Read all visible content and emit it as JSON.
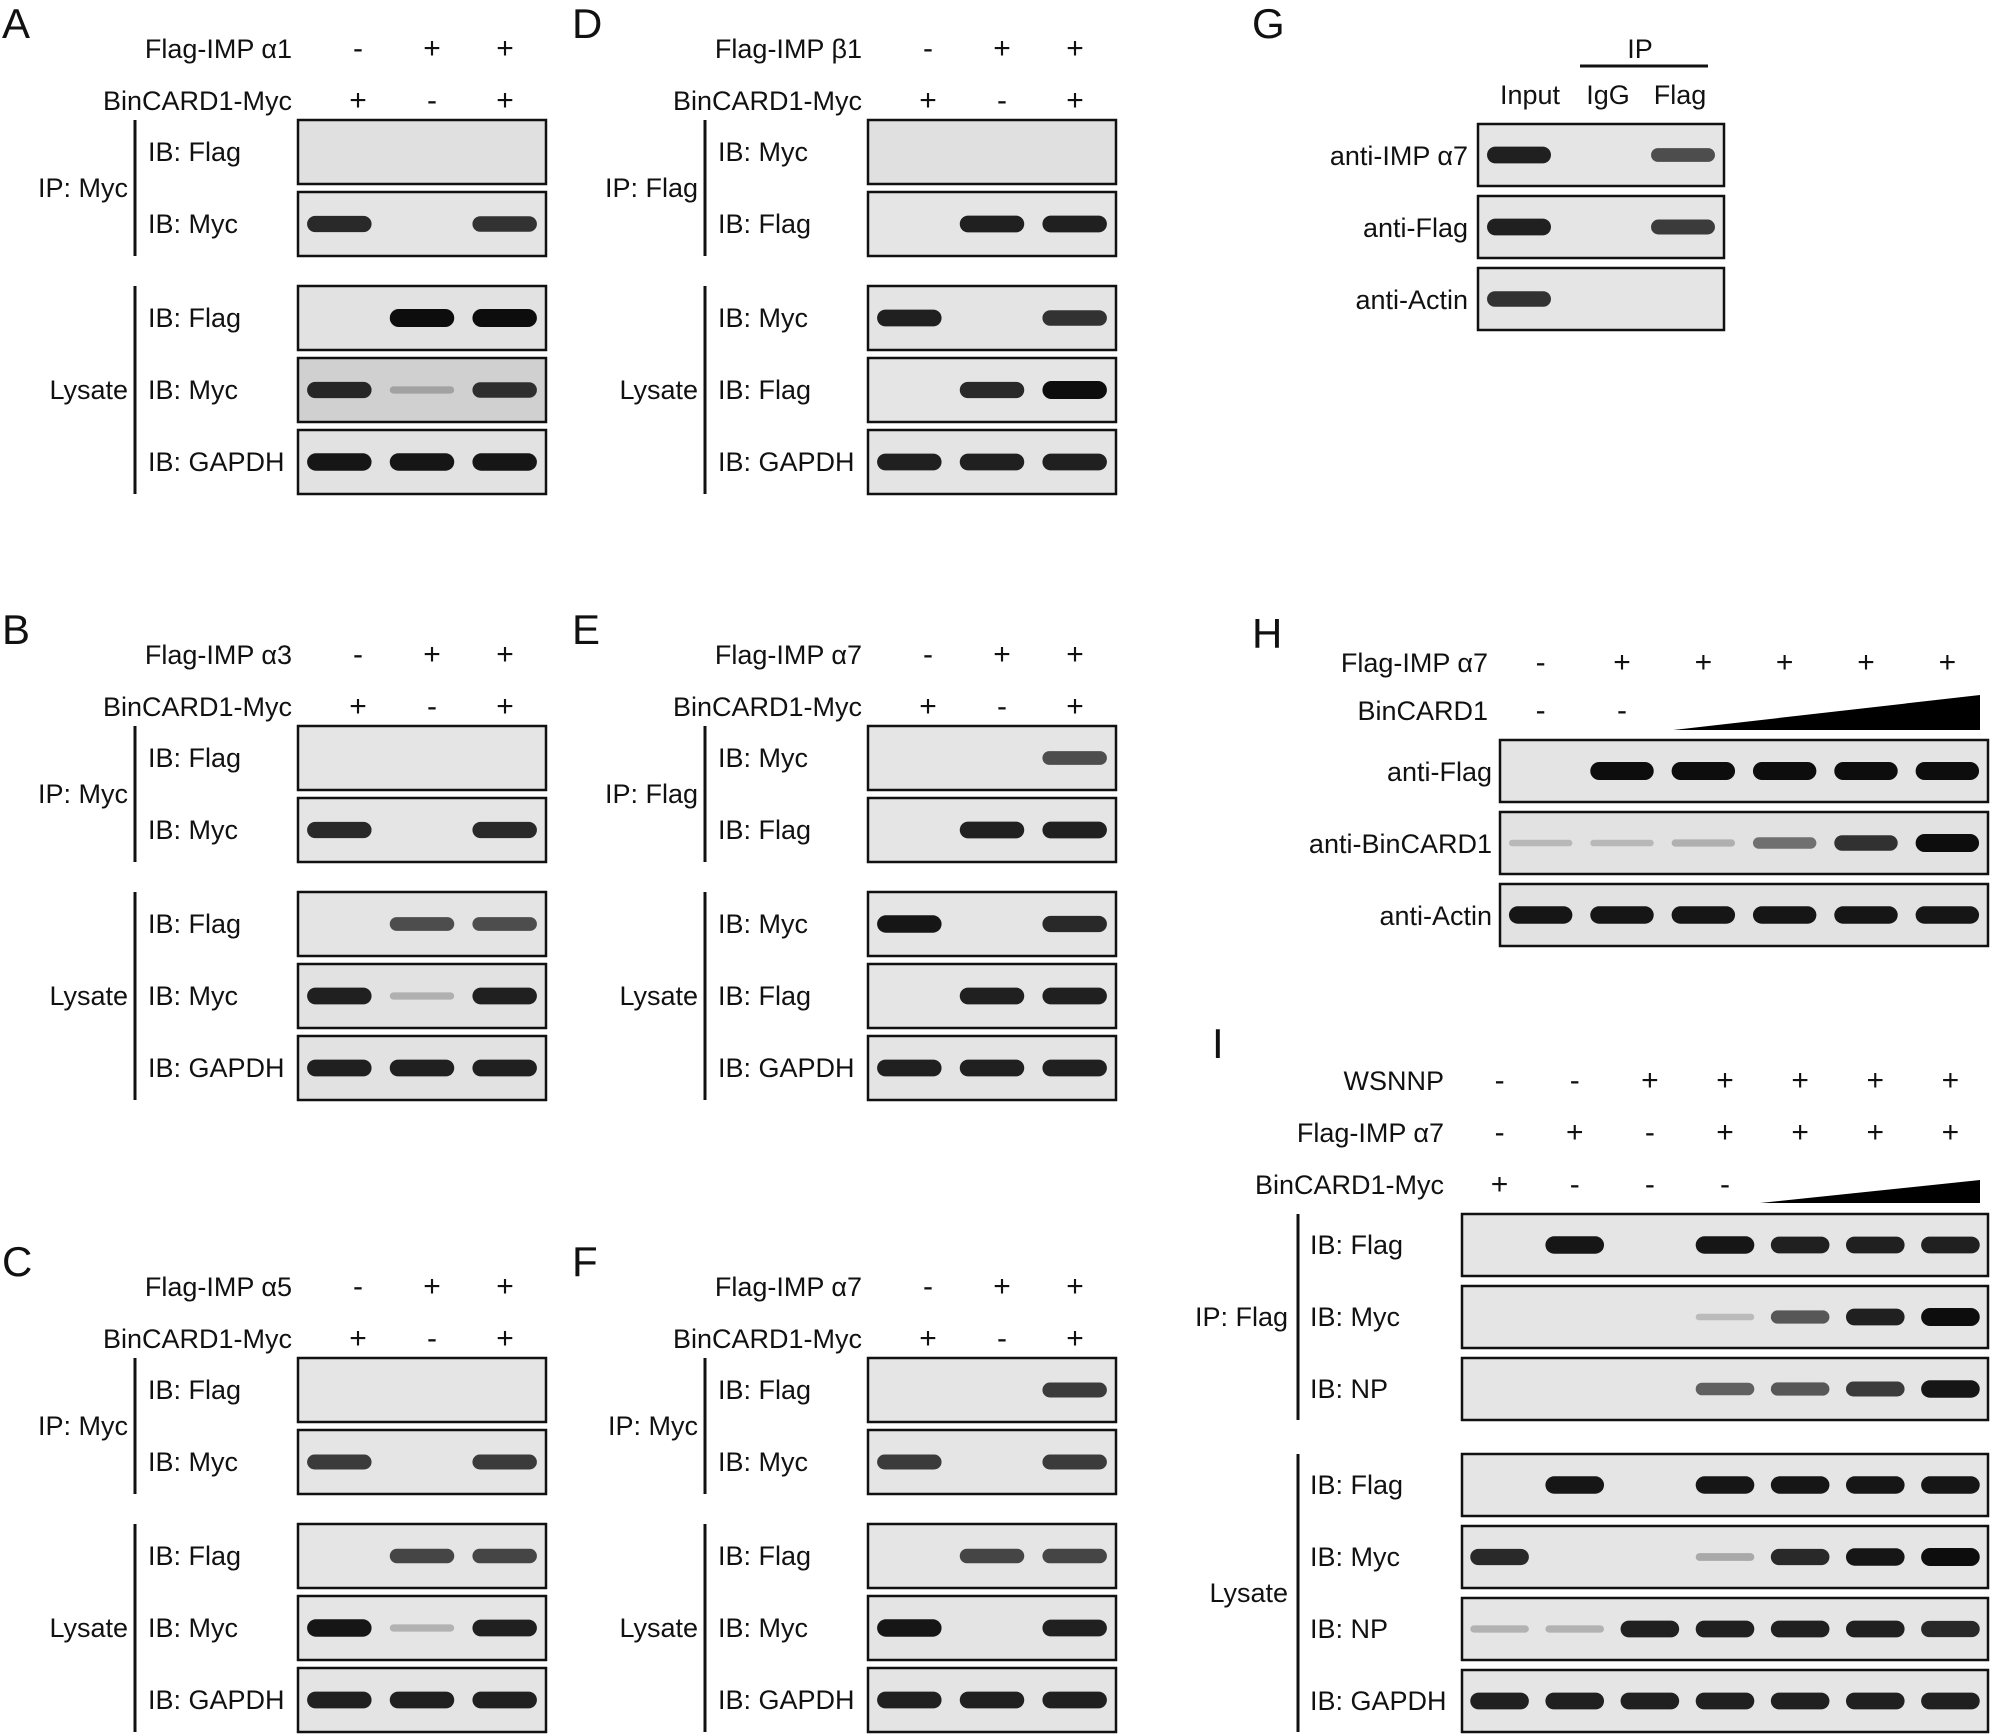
{
  "panels": [
    {
      "letter": "A",
      "conditions": [
        {
          "label": "Flag-IMP α1",
          "signs": [
            "-",
            "+",
            "+"
          ]
        },
        {
          "label": "BinCARD1-Myc",
          "signs": [
            "+",
            "-",
            "+"
          ]
        }
      ],
      "groups": [
        {
          "label": "IP: Myc",
          "blots": [
            {
              "label": "IB: Flag",
              "bands": [
                0,
                0,
                0
              ],
              "bg": 0.18
            },
            {
              "label": "IB: Myc",
              "bands": [
                0.85,
                0,
                0.8
              ],
              "bg": 0.12
            }
          ]
        },
        {
          "label": "Lysate",
          "blots": [
            {
              "label": "IB: Flag",
              "bands": [
                0,
                1,
                1
              ],
              "bg": 0.15
            },
            {
              "label": "IB: Myc",
              "bands": [
                0.85,
                0.1,
                0.8
              ],
              "bg": 0.45
            },
            {
              "label": "IB: GAPDH",
              "bands": [
                0.95,
                0.95,
                0.95
              ],
              "bg": 0.15
            }
          ]
        }
      ]
    },
    {
      "letter": "B",
      "conditions": [
        {
          "label": "Flag-IMP α3",
          "signs": [
            "-",
            "+",
            "+"
          ]
        },
        {
          "label": "BinCARD1-Myc",
          "signs": [
            "+",
            "-",
            "+"
          ]
        }
      ],
      "groups": [
        {
          "label": "IP: Myc",
          "blots": [
            {
              "label": "IB: Flag",
              "bands": [
                0,
                0,
                0
              ],
              "bg": 0.1
            },
            {
              "label": "IB: Myc",
              "bands": [
                0.85,
                0,
                0.85
              ],
              "bg": 0.1
            }
          ]
        },
        {
          "label": "Lysate",
          "blots": [
            {
              "label": "IB: Flag",
              "bands": [
                0,
                0.65,
                0.65
              ],
              "bg": 0.12
            },
            {
              "label": "IB: Myc",
              "bands": [
                0.9,
                0.1,
                0.9
              ],
              "bg": 0.15
            },
            {
              "label": "IB: GAPDH",
              "bands": [
                0.9,
                0.9,
                0.9
              ],
              "bg": 0.15
            }
          ]
        }
      ]
    },
    {
      "letter": "C",
      "conditions": [
        {
          "label": "Flag-IMP α5",
          "signs": [
            "-",
            "+",
            "+"
          ]
        },
        {
          "label": "BinCARD1-Myc",
          "signs": [
            "+",
            "-",
            "+"
          ]
        }
      ],
      "groups": [
        {
          "label": "IP: Myc",
          "blots": [
            {
              "label": "IB: Flag",
              "bands": [
                0,
                0,
                0
              ],
              "bg": 0.1
            },
            {
              "label": "IB: Myc",
              "bands": [
                0.75,
                0,
                0.75
              ],
              "bg": 0.1
            }
          ]
        },
        {
          "label": "Lysate",
          "blots": [
            {
              "label": "IB: Flag",
              "bands": [
                0,
                0.7,
                0.7
              ],
              "bg": 0.1
            },
            {
              "label": "IB: Myc",
              "bands": [
                0.95,
                0.1,
                0.9
              ],
              "bg": 0.1
            },
            {
              "label": "IB: GAPDH",
              "bands": [
                0.9,
                0.9,
                0.9
              ],
              "bg": 0.12
            }
          ]
        }
      ]
    },
    {
      "letter": "D",
      "conditions": [
        {
          "label": "Flag-IMP β1",
          "signs": [
            "-",
            "+",
            "+"
          ]
        },
        {
          "label": "BinCARD1-Myc",
          "signs": [
            "+",
            "-",
            "+"
          ]
        }
      ],
      "groups": [
        {
          "label": "IP: Flag",
          "blots": [
            {
              "label": "IB: Myc",
              "bands": [
                0,
                0,
                0
              ],
              "bg": 0.18
            },
            {
              "label": "IB: Flag",
              "bands": [
                0,
                0.9,
                0.9
              ],
              "bg": 0.1
            }
          ]
        },
        {
          "label": "Lysate",
          "blots": [
            {
              "label": "IB: Myc",
              "bands": [
                0.9,
                0,
                0.8
              ],
              "bg": 0.12
            },
            {
              "label": "IB: Flag",
              "bands": [
                0,
                0.85,
                1
              ],
              "bg": 0.1
            },
            {
              "label": "IB: GAPDH",
              "bands": [
                0.9,
                0.9,
                0.9
              ],
              "bg": 0.12
            }
          ]
        }
      ]
    },
    {
      "letter": "E",
      "conditions": [
        {
          "label": "Flag-IMP α7",
          "signs": [
            "-",
            "+",
            "+"
          ]
        },
        {
          "label": "BinCARD1-Myc",
          "signs": [
            "+",
            "-",
            "+"
          ]
        }
      ],
      "groups": [
        {
          "label": "IP: Flag",
          "blots": [
            {
              "label": "IB: Myc",
              "bands": [
                0,
                0,
                0.65
              ],
              "bg": 0.1
            },
            {
              "label": "IB: Flag",
              "bands": [
                0,
                0.9,
                0.9
              ],
              "bg": 0.1
            }
          ]
        },
        {
          "label": "Lysate",
          "blots": [
            {
              "label": "IB: Myc",
              "bands": [
                0.95,
                0,
                0.85
              ],
              "bg": 0.1
            },
            {
              "label": "IB: Flag",
              "bands": [
                0,
                0.9,
                0.9
              ],
              "bg": 0.1
            },
            {
              "label": "IB: GAPDH",
              "bands": [
                0.9,
                0.9,
                0.9
              ],
              "bg": 0.12
            }
          ]
        }
      ]
    },
    {
      "letter": "F",
      "conditions": [
        {
          "label": "Flag-IMP α7",
          "signs": [
            "-",
            "+",
            "+"
          ]
        },
        {
          "label": "BinCARD1-Myc",
          "signs": [
            "+",
            "-",
            "+"
          ]
        }
      ],
      "groups": [
        {
          "label": "IP: Myc",
          "blots": [
            {
              "label": "IB: Flag",
              "bands": [
                0,
                0,
                0.75
              ],
              "bg": 0.1
            },
            {
              "label": "IB: Myc",
              "bands": [
                0.75,
                0,
                0.75
              ],
              "bg": 0.1
            }
          ]
        },
        {
          "label": "Lysate",
          "blots": [
            {
              "label": "IB: Flag",
              "bands": [
                0,
                0.7,
                0.7
              ],
              "bg": 0.1
            },
            {
              "label": "IB: Myc",
              "bands": [
                0.95,
                0,
                0.9
              ],
              "bg": 0.12
            },
            {
              "label": "IB: GAPDH",
              "bands": [
                0.9,
                0.9,
                0.9
              ],
              "bg": 0.12
            }
          ]
        }
      ]
    }
  ],
  "panel_g": {
    "letter": "G",
    "ip_label": "IP",
    "lanes": [
      "Input",
      "IgG",
      "Flag"
    ],
    "blots": [
      {
        "label": "anti-IMP α7",
        "bands": [
          0.9,
          0,
          0.65
        ],
        "bg": 0.1
      },
      {
        "label": "anti-Flag",
        "bands": [
          0.9,
          0,
          0.75
        ],
        "bg": 0.1
      },
      {
        "label": "anti-Actin",
        "bands": [
          0.8,
          0,
          0
        ],
        "bg": 0.1
      }
    ]
  },
  "panel_h": {
    "letter": "H",
    "conditions": [
      {
        "label": "Flag-IMP α7",
        "signs": [
          "-",
          "+",
          "+",
          "+",
          "+",
          "+"
        ]
      },
      {
        "label": "BinCARD1",
        "signs": [
          "-",
          "-",
          "",
          "",
          "",
          ""
        ]
      }
    ],
    "blots": [
      {
        "label": "anti-Flag",
        "bands": [
          0,
          1,
          1,
          1,
          1,
          1
        ],
        "bg": 0.12
      },
      {
        "label": "anti-BinCARD1",
        "bands": [
          0.05,
          0.05,
          0.1,
          0.45,
          0.8,
          1
        ],
        "bg": 0.15
      },
      {
        "label": "anti-Actin",
        "bands": [
          0.95,
          0.95,
          0.95,
          0.95,
          0.95,
          0.95
        ],
        "bg": 0.15
      }
    ]
  },
  "panel_i": {
    "letter": "I",
    "conditions": [
      {
        "label": "WSNNP",
        "signs": [
          "-",
          "-",
          "+",
          "+",
          "+",
          "+",
          "+"
        ]
      },
      {
        "label": "Flag-IMP α7",
        "signs": [
          "-",
          "+",
          "-",
          "+",
          "+",
          "+",
          "+"
        ]
      },
      {
        "label": "BinCARD1-Myc",
        "signs": [
          "+",
          "-",
          "-",
          "-",
          "",
          "",
          ""
        ]
      }
    ],
    "groups": [
      {
        "label": "IP: Flag",
        "blots": [
          {
            "label": "IB: Flag",
            "bands": [
              0,
              0.95,
              0,
              0.95,
              0.9,
              0.9,
              0.9
            ],
            "bg": 0.1
          },
          {
            "label": "IB: Myc",
            "bands": [
              0,
              0,
              0,
              0.05,
              0.6,
              0.9,
              1
            ],
            "bg": 0.1
          },
          {
            "label": "IB: NP",
            "bands": [
              0,
              0,
              0,
              0.55,
              0.6,
              0.75,
              0.95
            ],
            "bg": 0.1
          }
        ]
      },
      {
        "label": "Lysate",
        "blots": [
          {
            "label": "IB: Flag",
            "bands": [
              0,
              0.95,
              0,
              0.95,
              0.95,
              0.95,
              0.95
            ],
            "bg": 0.1
          },
          {
            "label": "IB: Myc",
            "bands": [
              0.85,
              0,
              0,
              0.15,
              0.85,
              0.95,
              1
            ],
            "bg": 0.1
          },
          {
            "label": "IB: NP",
            "bands": [
              0.1,
              0.1,
              0.9,
              0.9,
              0.9,
              0.9,
              0.85
            ],
            "bg": 0.1
          },
          {
            "label": "IB: GAPDH",
            "bands": [
              0.9,
              0.9,
              0.9,
              0.9,
              0.9,
              0.9,
              0.9
            ],
            "bg": 0.1
          }
        ]
      }
    ]
  }
}
